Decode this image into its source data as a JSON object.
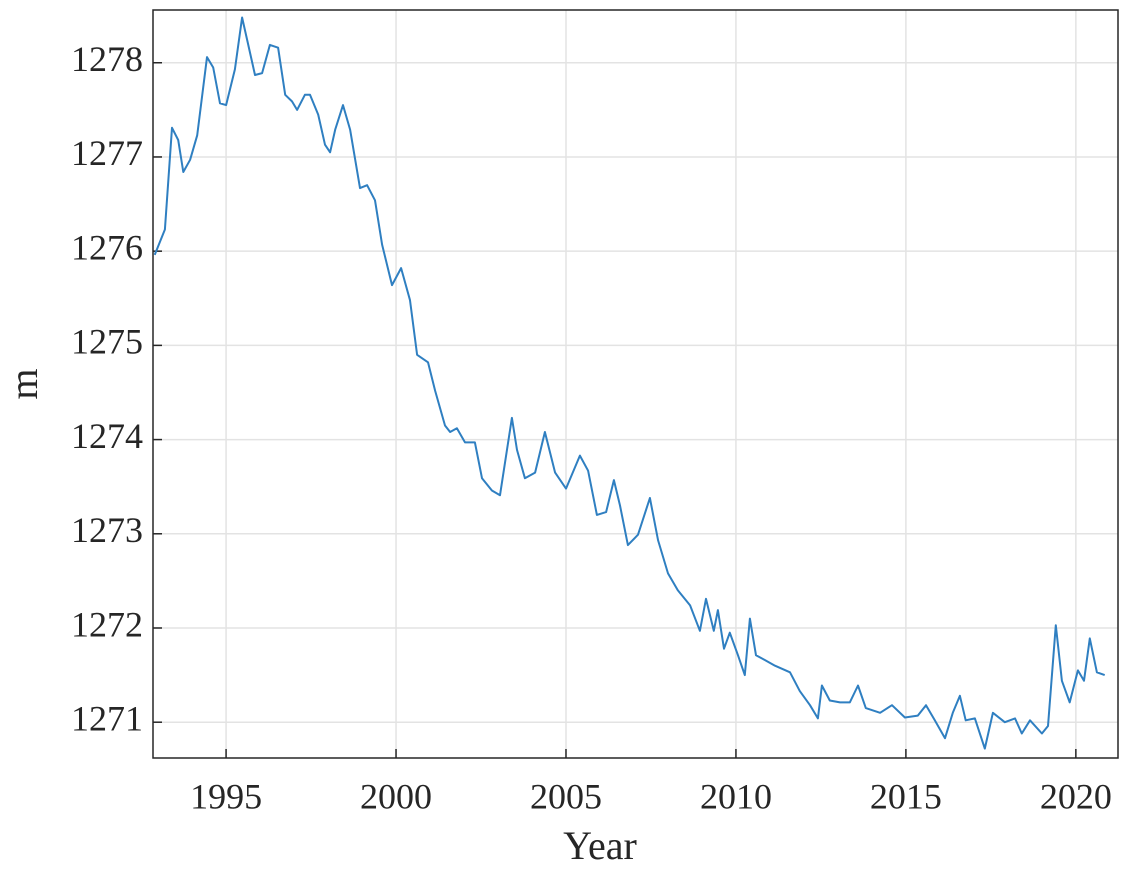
{
  "chart_data": {
    "type": "line",
    "xlabel": "Year",
    "ylabel": "m",
    "xlim": [
      1992.85,
      2021.24
    ],
    "ylim": [
      1270.62,
      1278.56
    ],
    "xticks": [
      1995,
      2000,
      2005,
      2010,
      2015,
      2020
    ],
    "yticks": [
      1271,
      1272,
      1273,
      1274,
      1275,
      1276,
      1277,
      1278
    ],
    "grid": true,
    "series": [
      {
        "color": "#2f7fc1",
        "x": [
          1992.9,
          1993.2,
          1993.41,
          1993.59,
          1993.74,
          1993.94,
          1994.15,
          1994.44,
          1994.62,
          1994.82,
          1995.0,
          1995.26,
          1995.47,
          1995.62,
          1995.85,
          1996.06,
          1996.29,
          1996.53,
          1996.74,
          1996.94,
          1997.09,
          1997.32,
          1997.47,
          1997.71,
          1997.91,
          1998.06,
          1998.21,
          1998.44,
          1998.65,
          1998.94,
          1999.15,
          1999.38,
          1999.59,
          1999.88,
          2000.15,
          2000.41,
          2000.62,
          2000.94,
          2001.15,
          2001.44,
          2001.59,
          2001.79,
          2002.03,
          2002.32,
          2002.53,
          2002.82,
          2003.06,
          2003.41,
          2003.56,
          2003.79,
          2004.09,
          2004.38,
          2004.68,
          2005.0,
          2005.41,
          2005.65,
          2005.91,
          2006.18,
          2006.41,
          2006.59,
          2006.82,
          2007.12,
          2007.47,
          2007.71,
          2008.0,
          2008.29,
          2008.65,
          2008.94,
          2009.12,
          2009.35,
          2009.47,
          2009.65,
          2009.82,
          2010.06,
          2010.26,
          2010.41,
          2010.59,
          2010.85,
          2011.15,
          2011.59,
          2011.88,
          2012.18,
          2012.41,
          2012.53,
          2012.76,
          2013.06,
          2013.35,
          2013.59,
          2013.82,
          2014.24,
          2014.59,
          2014.97,
          2015.35,
          2015.59,
          2015.85,
          2016.15,
          2016.38,
          2016.59,
          2016.76,
          2017.03,
          2017.32,
          2017.56,
          2017.91,
          2018.21,
          2018.41,
          2018.65,
          2019.0,
          2019.18,
          2019.41,
          2019.59,
          2019.82,
          2020.06,
          2020.24,
          2020.41,
          2020.62,
          2020.85
        ],
        "values": [
          1275.96,
          1276.23,
          1277.31,
          1277.18,
          1276.84,
          1276.97,
          1277.23,
          1278.06,
          1277.95,
          1277.57,
          1277.55,
          1277.93,
          1278.48,
          1278.24,
          1277.87,
          1277.89,
          1278.19,
          1278.16,
          1277.66,
          1277.59,
          1277.5,
          1277.66,
          1277.66,
          1277.45,
          1277.13,
          1277.05,
          1277.29,
          1277.55,
          1277.29,
          1276.67,
          1276.7,
          1276.54,
          1276.07,
          1275.64,
          1275.82,
          1275.48,
          1274.9,
          1274.82,
          1274.52,
          1274.15,
          1274.08,
          1274.12,
          1273.97,
          1273.97,
          1273.59,
          1273.46,
          1273.41,
          1274.23,
          1273.89,
          1273.59,
          1273.65,
          1274.08,
          1273.65,
          1273.48,
          1273.83,
          1273.67,
          1273.2,
          1273.23,
          1273.57,
          1273.3,
          1272.88,
          1272.99,
          1273.38,
          1272.93,
          1272.58,
          1272.4,
          1272.24,
          1271.97,
          1272.31,
          1271.97,
          1272.19,
          1271.78,
          1271.95,
          1271.71,
          1271.5,
          1272.1,
          1271.71,
          1271.66,
          1271.6,
          1271.53,
          1271.33,
          1271.18,
          1271.04,
          1271.39,
          1271.23,
          1271.21,
          1271.21,
          1271.39,
          1271.15,
          1271.1,
          1271.18,
          1271.05,
          1271.07,
          1271.18,
          1271.02,
          1270.83,
          1271.1,
          1271.28,
          1271.02,
          1271.04,
          1270.72,
          1271.1,
          1271.0,
          1271.04,
          1270.88,
          1271.02,
          1270.88,
          1270.96,
          1272.03,
          1271.44,
          1271.21,
          1271.55,
          1271.44,
          1271.89,
          1271.53,
          1271.5
        ]
      }
    ]
  }
}
